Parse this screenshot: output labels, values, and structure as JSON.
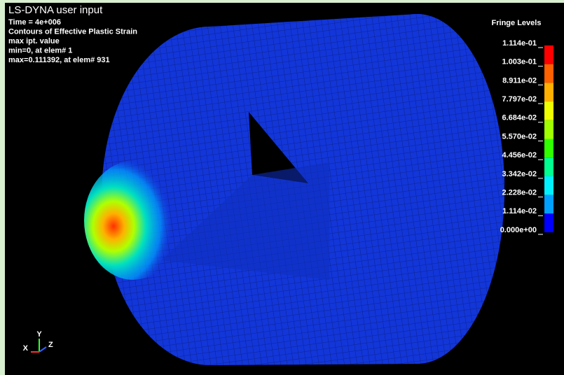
{
  "header": {
    "title": "LS-DYNA user input",
    "lines": [
      "Time =      4e+006",
      "Contours of Effective Plastic Strain",
      "max ipt. value",
      " min=0, at elem# 1",
      " max=0.111392, at elem# 931"
    ]
  },
  "legend": {
    "title": "Fringe Levels",
    "levels": [
      "1.114e-01",
      "1.003e-01",
      "8.911e-02",
      "7.797e-02",
      "6.684e-02",
      "5.570e-02",
      "4.456e-02",
      "3.342e-02",
      "2.228e-02",
      "1.114e-02",
      "0.000e+00"
    ],
    "colors": [
      "#ff0000",
      "#ff6000",
      "#ffb000",
      "#f0ff00",
      "#a0ff00",
      "#30ff00",
      "#00ff90",
      "#00f0ff",
      "#00a0ff",
      "#0000ff"
    ]
  },
  "triad": {
    "x": "X",
    "y": "Y",
    "z": "Z"
  }
}
